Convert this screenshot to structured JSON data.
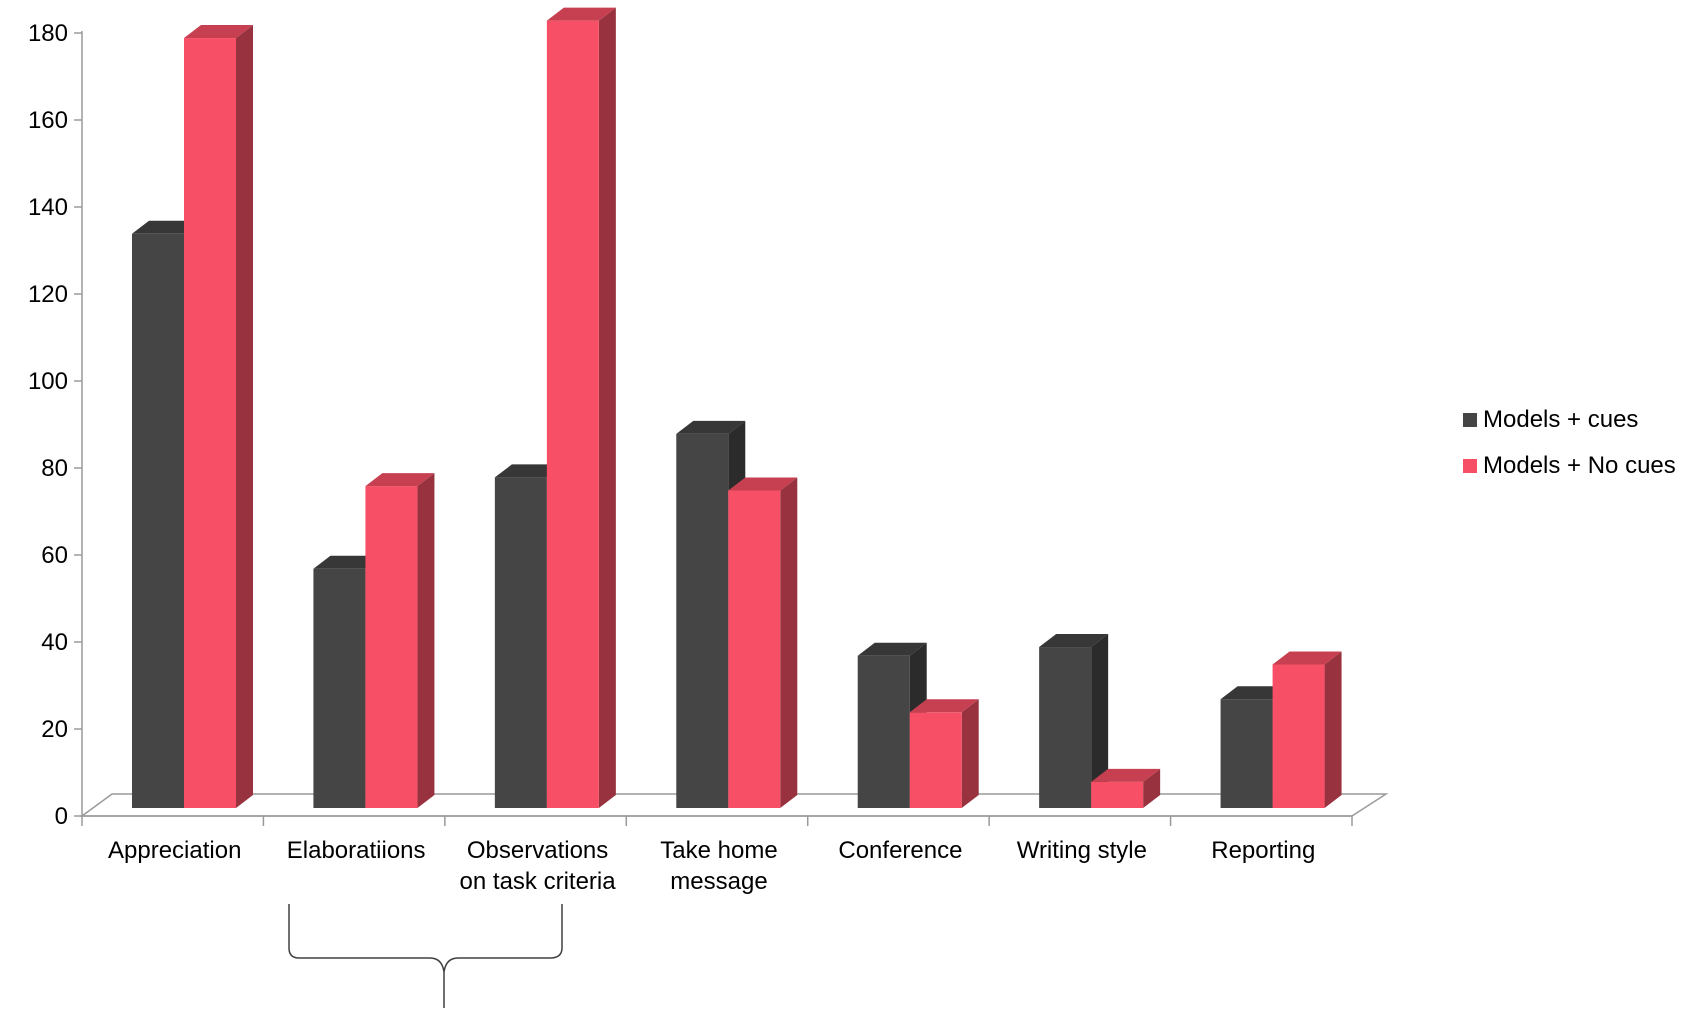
{
  "chart_data": {
    "type": "bar",
    "title": "",
    "xlabel": "",
    "ylabel": "",
    "ylim": [
      0,
      180
    ],
    "yticks": [
      "0",
      "20",
      "40",
      "60",
      "80",
      "100",
      "120",
      "140",
      "160",
      "180"
    ],
    "categories": [
      "Appreciation",
      "Elaboratiions",
      "Observations\non task criteria",
      "Take home\nmessage",
      "Conference",
      "Writing style",
      "Reporting"
    ],
    "series": [
      {
        "name": "Models + cues",
        "values": [
          132,
          55,
          76,
          86,
          35,
          37,
          25
        ],
        "color": "#454545"
      },
      {
        "name": "Models + No cues",
        "values": [
          177,
          74,
          181,
          73,
          22,
          6,
          33
        ],
        "color": "#f75066"
      }
    ],
    "legend_position": "right",
    "grid": false,
    "style": "3d-clustered"
  }
}
